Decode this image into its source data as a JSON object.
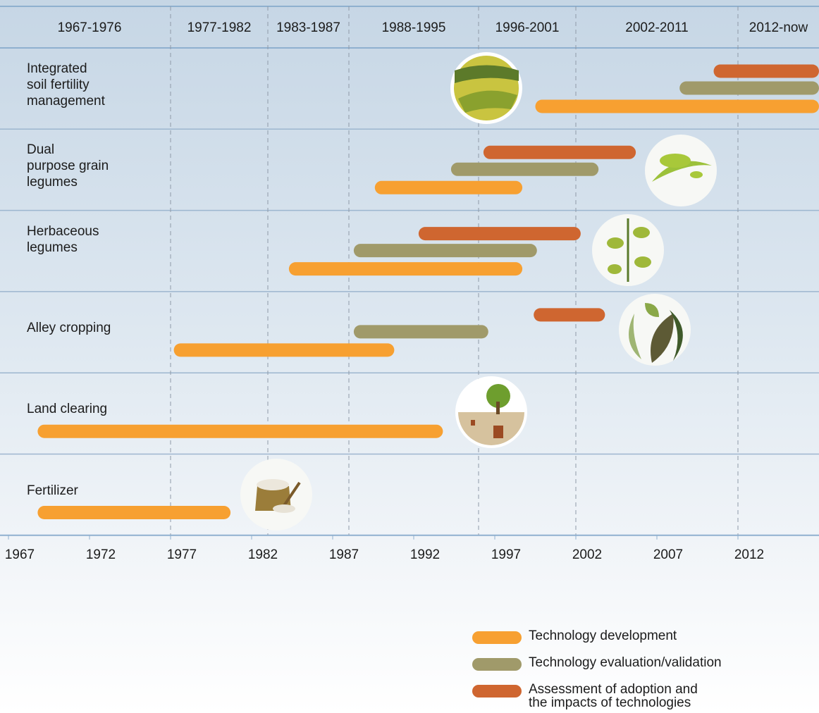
{
  "chart_data": {
    "type": "timeline",
    "categories": [
      "Integrated\nsoil fertility\nmanagement",
      "Dual\npurpose grain\nlegumes",
      "Herbaceous\nlegumes",
      "Alley cropping",
      "Land clearing",
      "Fertilizer"
    ],
    "periods": [
      {
        "label": "1967-1976",
        "start": 1967,
        "end": 1977
      },
      {
        "label": "1977-1982",
        "start": 1977,
        "end": 1983
      },
      {
        "label": "1983-1987",
        "start": 1983,
        "end": 1988
      },
      {
        "label": "1988-1995",
        "start": 1988,
        "end": 1996
      },
      {
        "label": "1996-2001",
        "start": 1996,
        "end": 2002
      },
      {
        "label": "2002-2011",
        "start": 2002,
        "end": 2012
      },
      {
        "label": "2012-now",
        "start": 2012,
        "end": 2017
      }
    ],
    "series": [
      {
        "name": "Technology development",
        "color": "#f7a031",
        "start": [
          1999.5,
          1989.6,
          1984.3,
          1977.2,
          1968.8,
          1968.8
        ],
        "end": [
          2017,
          1998.7,
          1998.7,
          1990.8,
          1993.8,
          1980.7
        ]
      },
      {
        "name": "Technology evaluation/validation",
        "color": "#a09a6a",
        "start": [
          2008.4,
          1994.3,
          1988.3,
          1988.3,
          null,
          null
        ],
        "end": [
          2017,
          2003.4,
          1999.6,
          1996.6,
          null,
          null
        ]
      },
      {
        "name": "Assessment of adoption and\nthe impacts of technologies",
        "color": "#cf6630",
        "start": [
          2010.5,
          1996.3,
          1992.3,
          1999.4,
          null,
          null
        ],
        "end": [
          2017,
          2005.7,
          2002.3,
          2003.8,
          null,
          null
        ]
      }
    ],
    "xlim": [
      1967,
      2017
    ],
    "xticks": [
      1967,
      1972,
      1977,
      1982,
      1987,
      1992,
      1997,
      2002,
      2007,
      2012
    ]
  }
}
